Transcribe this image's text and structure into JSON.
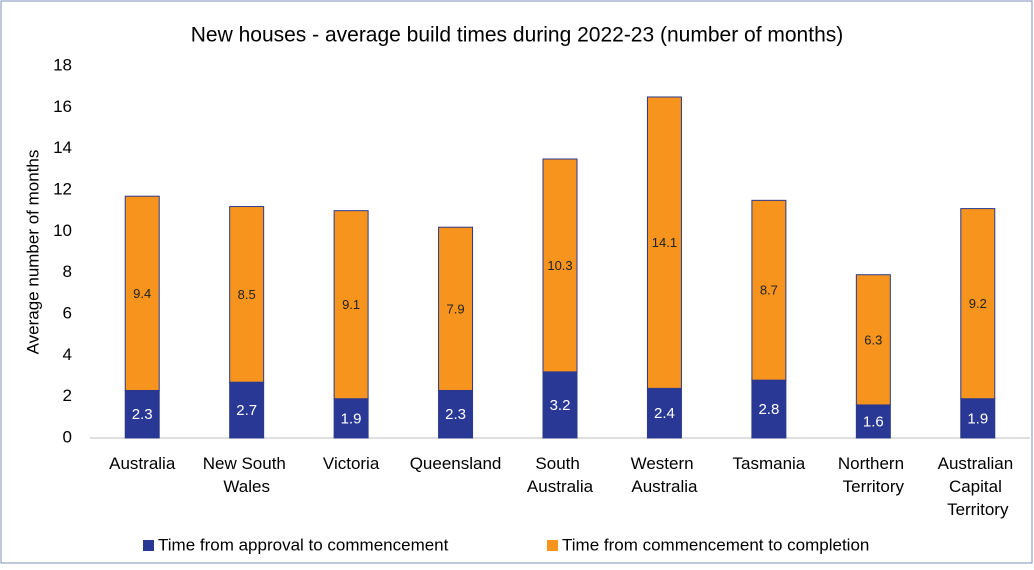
{
  "chart_data": {
    "type": "stacked_bar",
    "title": "New houses - average build times during 2022-23 (number of months)",
    "y_label": "Average number of months",
    "categories": [
      "Australia",
      "New South Wales",
      "Victoria",
      "Queensland",
      "South Australia",
      "Western Australia",
      "Tasmania",
      "Northern Territory",
      "Australian Capital Territory"
    ],
    "series": [
      {
        "name": "Time from approval to commencement",
        "color": "#293894",
        "values": [
          2.3,
          2.7,
          1.9,
          2.3,
          3.2,
          2.4,
          2.8,
          1.6,
          1.9
        ]
      },
      {
        "name": "Time from commencement to completion",
        "color": "#f7941d",
        "values": [
          9.4,
          8.5,
          9.1,
          7.9,
          10.3,
          14.1,
          8.7,
          6.3,
          9.2
        ]
      }
    ],
    "ylim": [
      0,
      18
    ],
    "yticks": [
      0,
      2,
      4,
      6,
      8,
      10,
      12,
      14,
      16,
      18
    ],
    "legend": "bottom"
  }
}
